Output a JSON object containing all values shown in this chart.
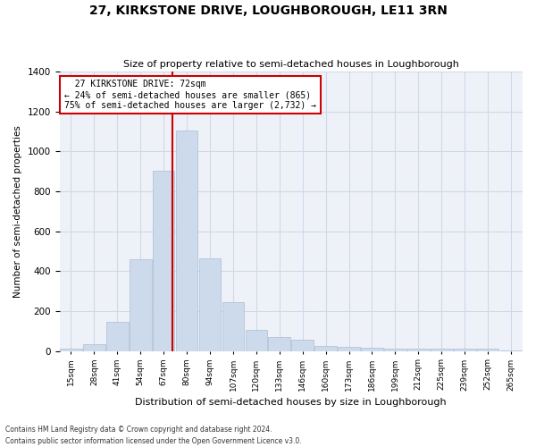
{
  "title": "27, KIRKSTONE DRIVE, LOUGHBOROUGH, LE11 3RN",
  "subtitle": "Size of property relative to semi-detached houses in Loughborough",
  "xlabel": "Distribution of semi-detached houses by size in Loughborough",
  "ylabel": "Number of semi-detached properties",
  "footnote1": "Contains HM Land Registry data © Crown copyright and database right 2024.",
  "footnote2": "Contains public sector information licensed under the Open Government Licence v3.0.",
  "categories": [
    "15sqm",
    "28sqm",
    "41sqm",
    "54sqm",
    "67sqm",
    "80sqm",
    "94sqm",
    "107sqm",
    "120sqm",
    "133sqm",
    "146sqm",
    "160sqm",
    "173sqm",
    "186sqm",
    "199sqm",
    "212sqm",
    "225sqm",
    "239sqm",
    "252sqm",
    "265sqm"
  ],
  "values": [
    10,
    35,
    145,
    460,
    905,
    1105,
    465,
    245,
    108,
    70,
    58,
    27,
    20,
    18,
    12,
    13,
    12,
    10,
    12,
    5
  ],
  "bar_color": "#ccdaeb",
  "bar_edge_color": "#aabdd6",
  "grid_color": "#d0d8e8",
  "bg_color": "#eef2f8",
  "property_label": "27 KIRKSTONE DRIVE: 72sqm",
  "pct_smaller": "24% of semi-detached houses are smaller (865)",
  "pct_larger": "75% of semi-detached houses are larger (2,732)",
  "annotation_box_color": "#cc0000",
  "ylim": [
    0,
    1400
  ],
  "title_fontsize": 10,
  "subtitle_fontsize": 8
}
